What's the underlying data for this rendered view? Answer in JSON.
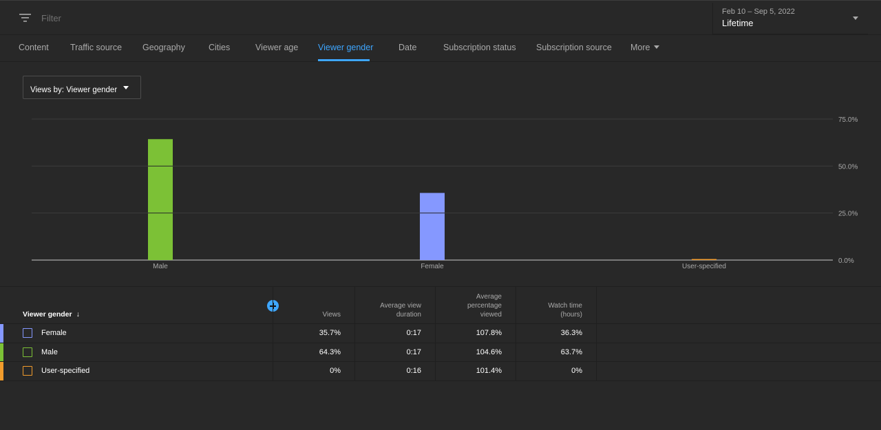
{
  "filter": {
    "placeholder": "Filter"
  },
  "date_picker": {
    "range": "Feb 10 – Sep 5, 2022",
    "label": "Lifetime"
  },
  "tabs": [
    {
      "label": "Content",
      "active": false
    },
    {
      "label": "Traffic source",
      "active": false
    },
    {
      "label": "Geography",
      "active": false
    },
    {
      "label": "Cities",
      "active": false
    },
    {
      "label": "Viewer age",
      "active": false
    },
    {
      "label": "Viewer gender",
      "active": true
    },
    {
      "label": "Date",
      "active": false
    },
    {
      "label": "Subscription status",
      "active": false
    },
    {
      "label": "Subscription source",
      "active": false
    },
    {
      "label": "More",
      "active": false
    }
  ],
  "dropdown": {
    "label": "Views by: Viewer gender"
  },
  "colors": {
    "male": "#7cc136",
    "female": "#8598ff",
    "user_specified": "#f29c2c",
    "accent": "#3ea6ff"
  },
  "chart_data": {
    "type": "bar",
    "categories": [
      "Male",
      "Female",
      "User-specified"
    ],
    "values": [
      64.3,
      35.7,
      0
    ],
    "ylim": [
      0,
      75
    ],
    "yticks": [
      "0.0%",
      "25.0%",
      "50.0%",
      "75.0%"
    ],
    "ytick_values": [
      0,
      25,
      50,
      75
    ],
    "grid": true
  },
  "table": {
    "first_header": "Viewer gender",
    "headers": [
      "Views",
      "Average view duration",
      "Average percentage viewed",
      "Watch time (hours)"
    ],
    "rows": [
      {
        "name": "Female",
        "color_key": "female",
        "values": [
          "35.7%",
          "0:17",
          "107.8%",
          "36.3%"
        ]
      },
      {
        "name": "Male",
        "color_key": "male",
        "values": [
          "64.3%",
          "0:17",
          "104.6%",
          "63.7%"
        ]
      },
      {
        "name": "User-specified",
        "color_key": "user_specified",
        "values": [
          "0%",
          "0:16",
          "101.4%",
          "0%"
        ]
      }
    ]
  }
}
